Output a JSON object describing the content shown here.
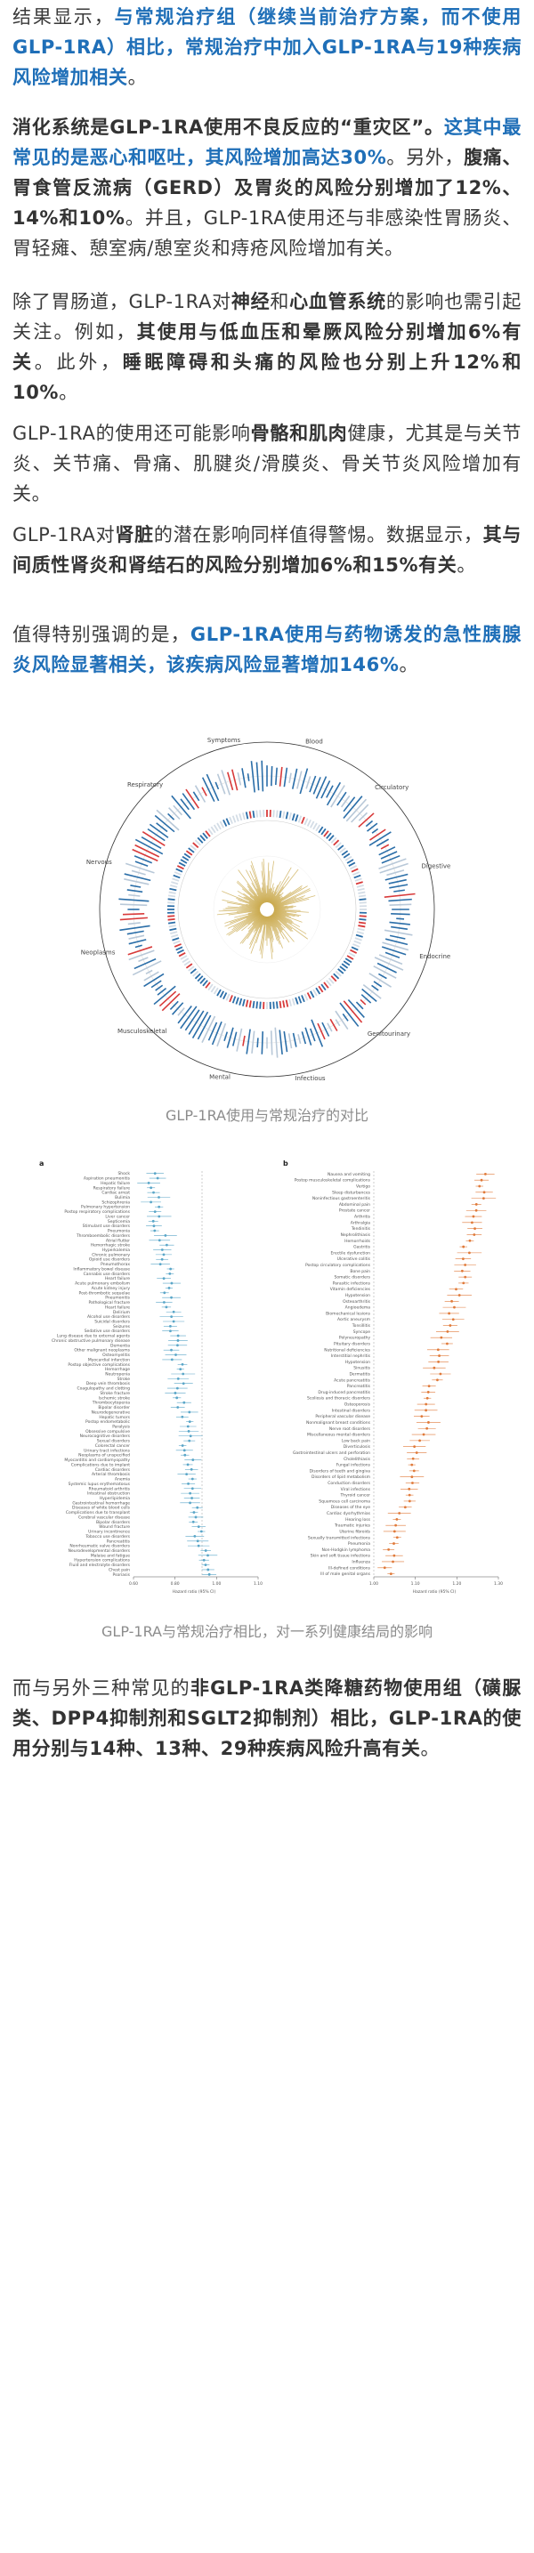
{
  "p1": {
    "s1": "结果显示，",
    "s2": "与常规治疗组（继续当前治疗方案，而不使用GLP-1RA）相比，常规治疗中加入GLP-1RA与19种疾病风险增加相关",
    "s3": "。"
  },
  "p2": {
    "s1": "消化系统是GLP-1RA使用不良反应的“重灾区”。",
    "s2": "这其中最常见的是恶心和呕吐，其风险增加高达30%",
    "s3": "。另外，",
    "s4": "腹痛、胃食管反流病（GERD）及胃炎的风险分别增加了12%、14%和10%",
    "s5": "。并且，GLP-1RA使用还与非感染性胃肠炎、胃轻瘫、憩室病/憩室炎和痔疮风险增加有关。"
  },
  "p3": {
    "s1": "除了胃肠道，GLP-1RA对",
    "s2": "神经",
    "s3": "和",
    "s4": "心血管系统",
    "s5": "的影响也需引起关注。例如，",
    "s6": "其使用与低血压和晕厥风险分别增加6%有关",
    "s7": "。此外，",
    "s8": "睡眠障碍和头痛的风险也分别上升12%和10%",
    "s9": "。"
  },
  "p4": {
    "s1": "GLP-1RA的使用还可能影响",
    "s2": "骨骼和肌肉",
    "s3": "健康，尤其是与关节炎、关节痛、骨痛、肌腱炎/滑膜炎、骨关节炎风险增加有关。"
  },
  "p5": {
    "s1": "GLP-1RA对",
    "s2": "肾脏",
    "s3": "的潜在影响同样值得警惕。数据显示，",
    "s4": "其与间质性肾炎和肾结石的风险分别增加6%和15%有关",
    "s5": "。"
  },
  "p6": {
    "s1": "值得特别强调的是，",
    "s2": "GLP-1RA使用与药物诱发的急性胰腺炎风险显著相关，该疾病风险显著增加146%",
    "s3": "。"
  },
  "figure1": {
    "caption": "GLP-1RA使用与常规治疗的对比",
    "ring_labels": [
      "Symptoms",
      "Blood",
      "Circulatory",
      "Digestive",
      "Endocrine",
      "Genitourinary",
      "Infectious",
      "Mental",
      "Musculoskeletal",
      "Neoplasms",
      "Nervous",
      "Respiratory"
    ],
    "colors": {
      "increase": "#d83a3a",
      "decrease": "#2b6ea8",
      "center": "#c9a84a"
    }
  },
  "figure2": {
    "caption": "GLP-1RA与常规治疗相比，对一系列健康结局的影响",
    "panel_a": "a",
    "panel_b": "b",
    "xaxis_label": "Hazard ratio (95% CI)",
    "a_ticks": [
      "0.60",
      "0.80",
      "1.00",
      "1.10"
    ],
    "b_ticks": [
      "1.00",
      "1.10",
      "1.20",
      "1.30"
    ],
    "a_items": [
      "Shock",
      "Aspiration pneumonitis",
      "Hepatic failure",
      "Respiratory failure",
      "Cardiac arrest",
      "Bulimia",
      "Schizophrenia",
      "Pulmonary hypertension",
      "Postop respiratory complications",
      "Liver cancer",
      "Septicemia",
      "Stimulant use disorders",
      "Pneumonia",
      "Thromboembolic disorders",
      "Atrial flutter",
      "Hemorrhagic stroke",
      "Hyperkalemia",
      "Chronic pulmonary",
      "Opioid use disorders",
      "Pneumothorax",
      "Inflammatory bowel disease",
      "Cannabis use disorders",
      "Heart failure",
      "Acute pulmonary embolism",
      "Acute kidney injury",
      "Post-thrombotic sequelae",
      "Pneumonitis",
      "Pathological fracture",
      "Heart failure",
      "Delirium",
      "Alcohol use disorders",
      "Suicidal disorders",
      "Seizures",
      "Sedative use disorders",
      "Lung disease due to external agents",
      "Chronic obstructive pulmonary disease",
      "Dementia",
      "Other malignant neoplasms",
      "Osteomyelitis",
      "Myocardial infarction",
      "Postop objective complications",
      "Hemorrhage",
      "Neutropenia",
      "Stroke",
      "Deep vein thrombosis",
      "Coagulopathy and clotting",
      "Stroke fracture",
      "Ischemic stroke",
      "Thrombocytopenia",
      "Bipolar disorder",
      "Neurodegenerative",
      "Hepatic tumors",
      "Postop endometabolic",
      "Paralysis",
      "Obsessive compulsive",
      "Neurocognitive disorders",
      "Sexual disorders",
      "Colorectal cancer",
      "Urinary tract infections",
      "Neoplasms of unspecified",
      "Myocarditis and cardiomyopathy",
      "Complications due to implant",
      "Cardiac disorders",
      "Arterial thrombosis",
      "Anemia",
      "Systemic lupus erythematosus",
      "Rheumatoid arthritis",
      "Intestinal obstruction",
      "Hyperlipidemia",
      "Gastrointestinal hemorrhage",
      "Diseases of white blood cells",
      "Complications due to transplant",
      "Cerebral vascular disease",
      "Bipolar disorders",
      "Wound fracture",
      "Urinary incontinence",
      "Tobacco use disorders",
      "Pancreatitis",
      "Nonrheumatic valve disorders",
      "Neurodevelopmental disorders",
      "Malaise and fatigue",
      "Hypertension complications",
      "Fluid and electrolyte disorders",
      "Chest pain",
      "Psoriasis"
    ],
    "b_items": [
      "Nausea and vomiting",
      "Postop musculoskeletal complications",
      "Vertigo",
      "Sleep disturbances",
      "Noninfectious gastroenteritis",
      "Abdominal pain",
      "Prostate cancer",
      "Arthritis",
      "Arthralgia",
      "Tendinitis",
      "Nephrolithiasis",
      "Hemorrhoids",
      "Gastritis",
      "Erectile dysfunction",
      "Ulcerative colitis",
      "Postop circulatory complications",
      "Bone pain",
      "Somatic disorders",
      "Parasitic infections",
      "Vitamin deficiencies",
      "Hypotension",
      "Osteoarthritis",
      "Angioedema",
      "Biomechanical lesions",
      "Aortic aneurysm",
      "Tonsillitis",
      "Syncope",
      "Polyneuropathy",
      "Pituitary disorders",
      "Nutritional deficiencies",
      "Interstitial nephritis",
      "Hypotension",
      "Sinusitis",
      "Dermatitis",
      "Acute pancreatitis",
      "Pancreatitis",
      "Drug-induced pancreatitis",
      "Scoliosis and thoracic disorders",
      "Osteoporosis",
      "Intestinal disorders",
      "Peripheral vascular disease",
      "Nonmalignant breast conditions",
      "Nerve root disorders",
      "Miscellaneous mental disorders",
      "Low back pain",
      "Diverticulosis",
      "Gastrointestinal ulcers and perforation",
      "Cholelithiasis",
      "Fungal infections",
      "Disorders of teeth and gingiva",
      "Disorders of lipid metabolism",
      "Conduction disorders",
      "Viral infections",
      "Thyroid cancer",
      "Squamous cell carcinoma",
      "Diseases of the eye",
      "Cardiac dysrhythmias",
      "Hearing loss",
      "Traumatic injuries",
      "Uterine fibroids",
      "Sexually transmitted infections",
      "Pneumonia",
      "Non-Hodgkin lymphoma",
      "Skin and soft tissue infections",
      "Influenza",
      "Ill-defined conditions",
      "Ill of male genital organs"
    ]
  },
  "p7": {
    "s1": "而与另外三种常见的",
    "s2": "非GLP-1RA类降糖药物使用组（磺脲类、DPP4抑制剂和SGLT2抑制剂）相比，GLP-1RA的使用分别与14种、13种、29种疾病风险升高有关",
    "s3": "。"
  }
}
